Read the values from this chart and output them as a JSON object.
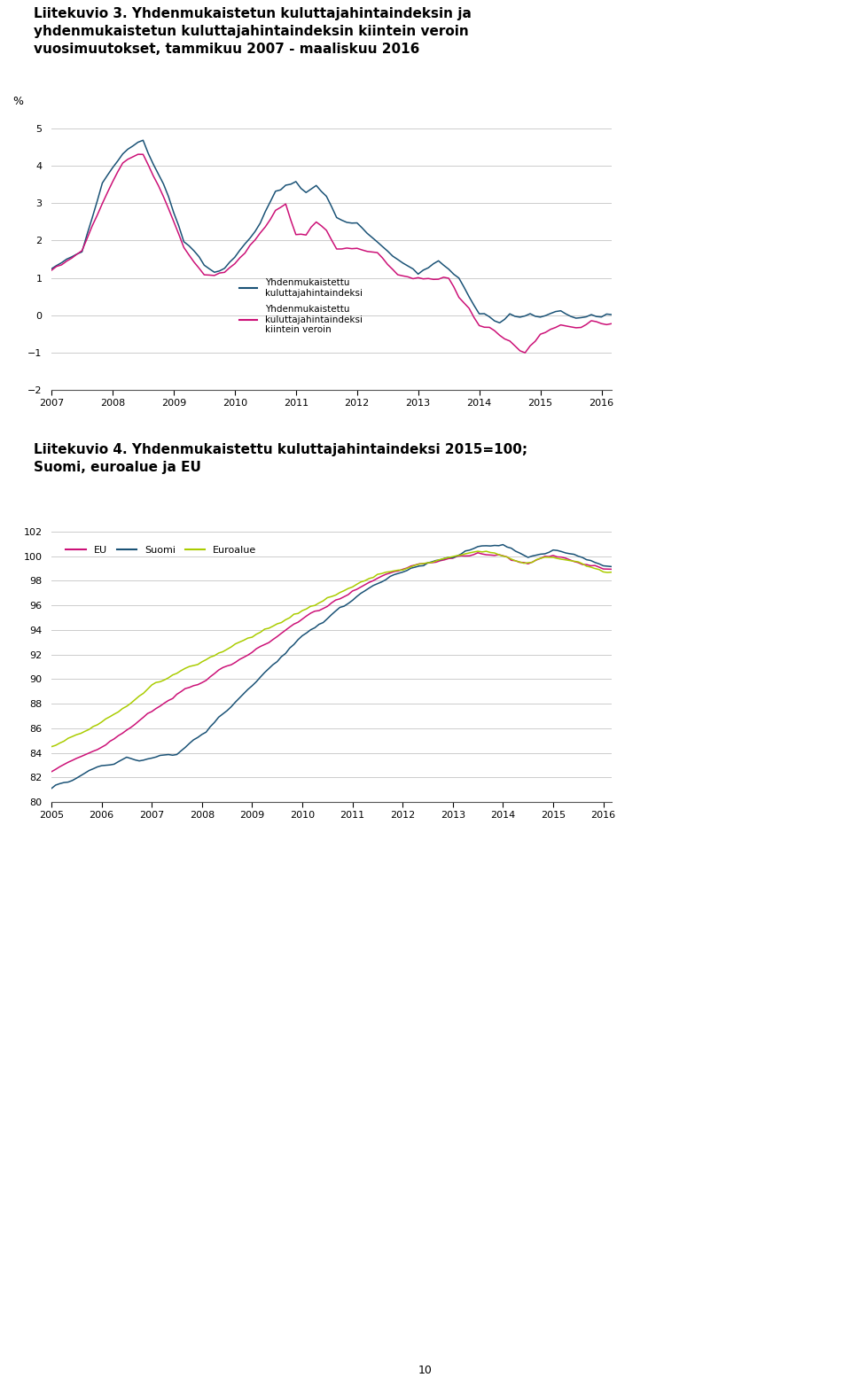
{
  "chart1_title_line1": "Liitekuvio 3. Yhdenmukaistetun kuluttajahintaindeksin ja",
  "chart1_title_line2": "yhdenmukaistetun kuluttajahintaindeksin kiintein veroin",
  "chart1_title_line3": "vuosimuutokset, tammikuu 2007 - maaliskuu 2016",
  "chart1_ylabel": "%",
  "chart1_ylim": [
    -2,
    5
  ],
  "chart1_yticks": [
    -2,
    -1,
    0,
    1,
    2,
    3,
    4,
    5
  ],
  "chart1_xticklabels": [
    "2007",
    "2008",
    "2009",
    "2010",
    "2011",
    "2012",
    "2013",
    "2014",
    "2015",
    "2016"
  ],
  "chart1_legend1": "Yhdenmukaistettu\nkuluttajahintaindeksi",
  "chart1_legend2": "Yhdenmukaistettu\nkuluttajahintaindeksi\nkiintein veroin",
  "chart1_color1": "#1a5276",
  "chart1_color2": "#cc1177",
  "chart2_title_line1": "Liitekuvio 4. Yhdenmukaistettu kuluttajahintaindeksi 2015=100;",
  "chart2_title_line2": "Suomi, euroalue ja EU",
  "chart2_ylim": [
    80,
    102
  ],
  "chart2_yticks": [
    80,
    82,
    84,
    86,
    88,
    90,
    92,
    94,
    96,
    98,
    100,
    102
  ],
  "chart2_xticklabels": [
    "2005",
    "2006",
    "2007",
    "2008",
    "2009",
    "2010",
    "2011",
    "2012",
    "2013",
    "2014",
    "2015",
    "2016"
  ],
  "chart2_legend_EU": "EU",
  "chart2_legend_Suomi": "Suomi",
  "chart2_legend_Euroalue": "Euroalue",
  "chart2_color_EU": "#cc1177",
  "chart2_color_Suomi": "#1a5276",
  "chart2_color_Euroalue": "#aacc00",
  "page_number": "10",
  "bg_color": "#ffffff",
  "grid_color": "#cccccc",
  "spine_color": "#555555"
}
